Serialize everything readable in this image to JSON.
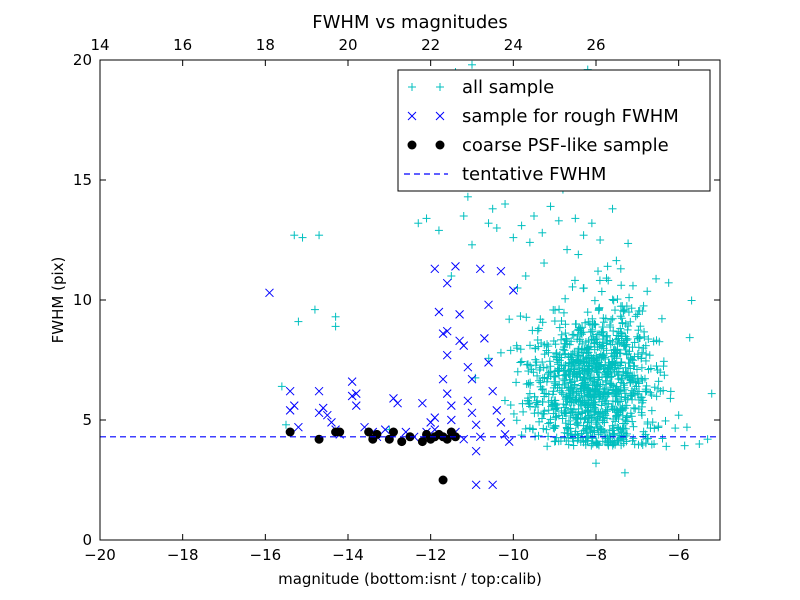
{
  "chart_data": {
    "type": "scatter",
    "title": "FWHM vs magnitudes",
    "xlabel": "magnitude (bottom:isnt / top:calib)",
    "ylabel": "FWHM (pix)",
    "xlim": [
      -20,
      -5
    ],
    "ylim": [
      0,
      20
    ],
    "x_ticks": [
      -20,
      -18,
      -16,
      -14,
      -12,
      -10,
      -8,
      -6
    ],
    "x_tick_labels": [
      "−20",
      "−18",
      "−16",
      "−14",
      "−12",
      "−10",
      "−8",
      "−6"
    ],
    "y_ticks": [
      0,
      5,
      10,
      15,
      20
    ],
    "y_tick_labels": [
      "0",
      "5",
      "10",
      "15",
      "20"
    ],
    "top_axis": {
      "ticks": [
        14,
        16,
        18,
        20,
        22,
        24,
        26
      ],
      "tick_labels": [
        "14",
        "16",
        "18",
        "20",
        "22",
        "24",
        "26"
      ],
      "offset": 34
    },
    "grid": false,
    "legend_position": "top-right",
    "tentative_fwhm": 4.3,
    "series": [
      {
        "name": "all sample",
        "marker": "plus",
        "color": "#00bfbf",
        "points": [
          [
            -15.6,
            6.4
          ],
          [
            -15.3,
            12.7
          ],
          [
            -15.1,
            12.6
          ],
          [
            -14.7,
            12.7
          ],
          [
            -15.2,
            9.1
          ],
          [
            -14.8,
            9.6
          ],
          [
            -14.3,
            9.3
          ],
          [
            -14.3,
            8.9
          ],
          [
            -15.5,
            4.8
          ],
          [
            -13.0,
            4.6
          ],
          [
            -12.3,
            13.2
          ],
          [
            -12.1,
            13.4
          ],
          [
            -11.8,
            12.9
          ],
          [
            -11.5,
            11.0
          ],
          [
            -11.2,
            13.5
          ],
          [
            -11.1,
            14.3
          ],
          [
            -11.0,
            12.3
          ],
          [
            -10.6,
            13.2
          ],
          [
            -10.5,
            13.8
          ],
          [
            -10.4,
            13.0
          ],
          [
            -10.2,
            14.0
          ],
          [
            -10.0,
            12.6
          ],
          [
            -9.8,
            13.1
          ],
          [
            -9.6,
            12.4
          ],
          [
            -9.5,
            13.5
          ],
          [
            -9.3,
            12.8
          ],
          [
            -9.1,
            13.9
          ],
          [
            -8.9,
            13.3
          ],
          [
            -8.8,
            14.6
          ],
          [
            -8.7,
            12.1
          ],
          [
            -8.5,
            13.4
          ],
          [
            -8.3,
            12.7
          ],
          [
            -8.1,
            13.2
          ],
          [
            -7.9,
            12.5
          ],
          [
            -7.6,
            13.8
          ],
          [
            -7.4,
            11.3
          ],
          [
            -7.2,
            10.1
          ],
          [
            -7.0,
            9.4
          ],
          [
            -6.5,
            6.3
          ],
          [
            -6.2,
            5.9
          ],
          [
            -6.0,
            5.2
          ],
          [
            -5.8,
            4.7
          ],
          [
            -5.5,
            4.0
          ],
          [
            -5.3,
            4.2
          ],
          [
            -5.2,
            6.1
          ],
          [
            -6.3,
            3.9
          ],
          [
            -6.8,
            4.4
          ],
          [
            -7.3,
            2.8
          ],
          [
            -8.0,
            3.2
          ],
          [
            -11.0,
            19.8
          ],
          [
            -11.4,
            19.5
          ],
          [
            -8.2,
            19.6
          ],
          [
            -10.3,
            7.8
          ],
          [
            -10.1,
            9.2
          ],
          [
            -9.9,
            10.5
          ],
          [
            -9.7,
            11.0
          ],
          [
            -9.6,
            6.1
          ],
          [
            -9.4,
            5.3
          ],
          [
            -9.2,
            4.6
          ],
          [
            -9.0,
            4.1
          ]
        ],
        "cluster": {
          "x_mean": -8.1,
          "x_sd": 0.75,
          "y_mean": 6.6,
          "y_sd": 1.7,
          "count": 1100
        }
      },
      {
        "name": "sample for rough FWHM",
        "marker": "x",
        "color": "#0000ff",
        "points": [
          [
            -15.9,
            10.3
          ],
          [
            -15.4,
            6.2
          ],
          [
            -15.3,
            5.6
          ],
          [
            -15.4,
            5.4
          ],
          [
            -15.2,
            4.7
          ],
          [
            -14.7,
            6.2
          ],
          [
            -14.6,
            5.5
          ],
          [
            -14.7,
            5.3
          ],
          [
            -14.5,
            5.2
          ],
          [
            -14.4,
            4.9
          ],
          [
            -14.3,
            4.6
          ],
          [
            -14.2,
            4.4
          ],
          [
            -13.9,
            6.6
          ],
          [
            -13.9,
            6.0
          ],
          [
            -13.8,
            5.6
          ],
          [
            -13.8,
            6.1
          ],
          [
            -13.6,
            4.7
          ],
          [
            -13.4,
            4.5
          ],
          [
            -13.3,
            4.3
          ],
          [
            -13.1,
            4.6
          ],
          [
            -12.9,
            5.9
          ],
          [
            -12.8,
            5.7
          ],
          [
            -12.6,
            4.5
          ],
          [
            -12.4,
            4.3
          ],
          [
            -12.2,
            5.7
          ],
          [
            -12.0,
            4.9
          ],
          [
            -11.9,
            4.6
          ],
          [
            -11.9,
            11.3
          ],
          [
            -11.8,
            9.5
          ],
          [
            -11.7,
            8.6
          ],
          [
            -11.6,
            8.7
          ],
          [
            -11.6,
            7.7
          ],
          [
            -11.7,
            6.7
          ],
          [
            -11.6,
            6.1
          ],
          [
            -11.5,
            5.6
          ],
          [
            -11.5,
            5.0
          ],
          [
            -11.4,
            4.5
          ],
          [
            -11.3,
            8.3
          ],
          [
            -11.2,
            8.1
          ],
          [
            -11.1,
            7.2
          ],
          [
            -11.0,
            6.7
          ],
          [
            -11.1,
            5.8
          ],
          [
            -11.0,
            5.3
          ],
          [
            -10.9,
            4.8
          ],
          [
            -10.8,
            4.3
          ],
          [
            -10.7,
            8.4
          ],
          [
            -10.6,
            7.4
          ],
          [
            -10.5,
            6.2
          ],
          [
            -10.4,
            5.4
          ],
          [
            -10.3,
            4.9
          ],
          [
            -10.2,
            4.4
          ],
          [
            -10.1,
            4.1
          ],
          [
            -10.6,
            9.8
          ],
          [
            -10.3,
            11.2
          ],
          [
            -10.0,
            10.4
          ],
          [
            -11.4,
            11.4
          ],
          [
            -11.6,
            10.7
          ],
          [
            -11.3,
            9.4
          ],
          [
            -10.8,
            11.3
          ],
          [
            -10.9,
            2.3
          ],
          [
            -10.5,
            2.3
          ],
          [
            -11.9,
            5.1
          ],
          [
            -12.1,
            4.5
          ],
          [
            -11.2,
            4.2
          ],
          [
            -10.9,
            3.7
          ]
        ]
      },
      {
        "name": "coarse PSF-like sample",
        "marker": "dot",
        "color": "#000000",
        "points": [
          [
            -15.4,
            4.5
          ],
          [
            -14.7,
            4.2
          ],
          [
            -14.3,
            4.5
          ],
          [
            -14.2,
            4.5
          ],
          [
            -13.5,
            4.5
          ],
          [
            -13.4,
            4.2
          ],
          [
            -13.3,
            4.4
          ],
          [
            -13.0,
            4.2
          ],
          [
            -12.9,
            4.5
          ],
          [
            -12.7,
            4.1
          ],
          [
            -12.5,
            4.3
          ],
          [
            -12.2,
            4.1
          ],
          [
            -12.1,
            4.4
          ],
          [
            -12.0,
            4.2
          ],
          [
            -11.9,
            4.3
          ],
          [
            -11.8,
            4.4
          ],
          [
            -11.7,
            4.3
          ],
          [
            -11.6,
            4.2
          ],
          [
            -11.5,
            4.5
          ],
          [
            -11.4,
            4.3
          ],
          [
            -11.7,
            2.5
          ]
        ]
      },
      {
        "name": "tentative FWHM",
        "marker": "dashed-line",
        "color": "#0000ff",
        "y": 4.3
      }
    ]
  }
}
